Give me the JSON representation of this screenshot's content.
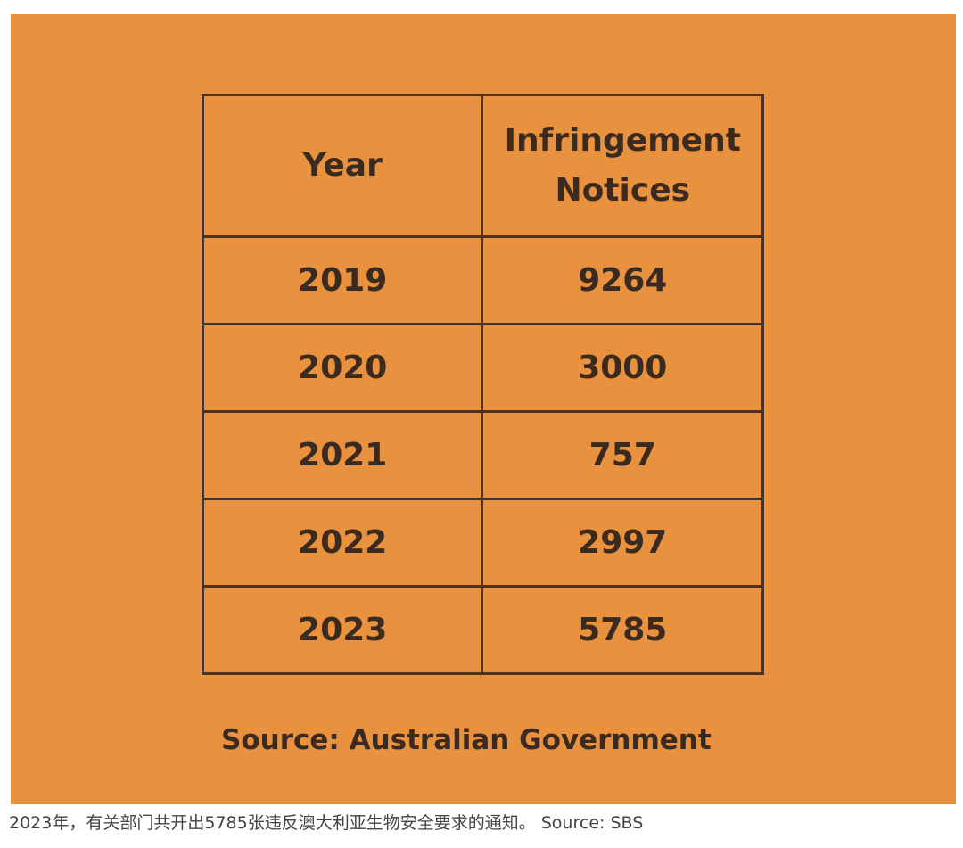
{
  "chart_data": {
    "type": "table",
    "columns": [
      "Year",
      "Infringement Notices"
    ],
    "rows": [
      {
        "year": "2019",
        "value": "9264"
      },
      {
        "year": "2020",
        "value": "3000"
      },
      {
        "year": "2021",
        "value": "757"
      },
      {
        "year": "2022",
        "value": "2997"
      },
      {
        "year": "2023",
        "value": "5785"
      }
    ],
    "source": "Source: Australian Government"
  },
  "caption": "2023年，有关部门共开出5785张违反澳大利亚生物安全要求的通知。 Source: SBS",
  "colors": {
    "panel_background": "#E8913F",
    "text_and_border": "#3a2a1f"
  }
}
